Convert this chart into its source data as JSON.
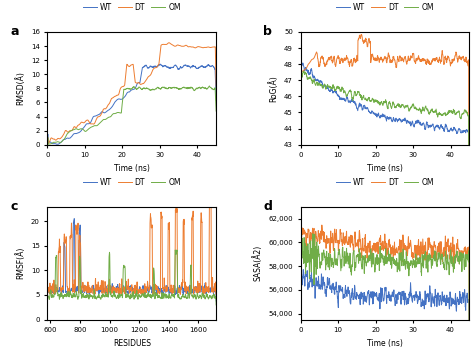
{
  "legend_labels": [
    "WT",
    "DT",
    "OM"
  ],
  "colors": [
    "#4472C4",
    "#ED7D31",
    "#70AD47"
  ],
  "panel_labels": [
    "a",
    "b",
    "c",
    "d"
  ],
  "rmsd_ylim": [
    0,
    16
  ],
  "rmsd_yticks": [
    0,
    2,
    4,
    6,
    8,
    10,
    12,
    14,
    16
  ],
  "rmsd_ylabel": "RMSD(Å)",
  "rog_ylim": [
    43,
    50
  ],
  "rog_yticks": [
    43,
    44,
    45,
    46,
    47,
    48,
    49,
    50
  ],
  "rog_ylabel": "RoG(Å)",
  "rmsf_ylim": [
    0,
    23
  ],
  "rmsf_yticks": [
    0,
    5,
    10,
    15,
    20
  ],
  "rmsf_ylabel": "RMSF(Å)",
  "sasa_ylim": [
    53500,
    63000
  ],
  "sasa_yticks": [
    54000,
    56000,
    58000,
    60000,
    62000
  ],
  "sasa_ylabel": "SASA(Å2)",
  "time_xlim": [
    0,
    45
  ],
  "time_xticks": [
    0,
    10,
    20,
    30,
    40
  ],
  "time_xlabel": "Time (ns)",
  "res_xlim": [
    580,
    1720
  ],
  "res_xticks": [
    600,
    800,
    1000,
    1200,
    1400,
    1600
  ],
  "res_xlabel": "RESIDUES",
  "seed": 42
}
